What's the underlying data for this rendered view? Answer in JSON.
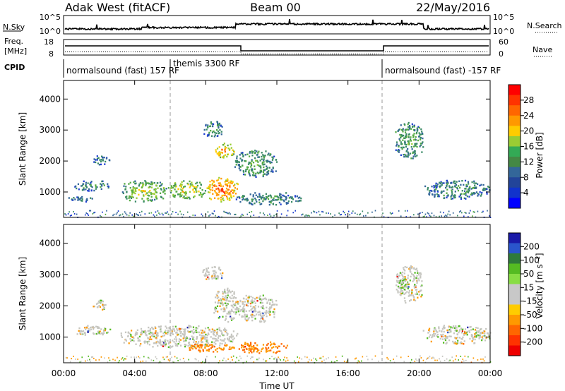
{
  "header": {
    "radar": "Adak West (fitACF)",
    "beam": "Beam 00",
    "date": "22/May/2016"
  },
  "sky_panel": {
    "left_label": "N.Sky",
    "right_label": "N.Search",
    "tick_top": "10^5",
    "tick_bottom": "10^0"
  },
  "freq_panel": {
    "label_line1": "Freq.",
    "label_line2": "[MHz]",
    "left_ticks": [
      "18",
      "8"
    ],
    "right_ticks": [
      "60",
      "0"
    ],
    "right_label": "Nave"
  },
  "cpid": {
    "label": "CPID",
    "segments": [
      {
        "text": "normalsound (fast) 157 RF",
        "start_h": 0
      },
      {
        "text": "themis 3300 RF",
        "start_h": 6
      },
      {
        "text": "normalsound (fast) -157 RF",
        "start_h": 18
      }
    ]
  },
  "power_colorbar": {
    "title": "Power [dB]",
    "ticks": [
      "28",
      "24",
      "20",
      "16",
      "12",
      "8",
      "4"
    ],
    "colors": [
      "#ff0000",
      "#ff3300",
      "#ff6600",
      "#ff9900",
      "#ffcc00",
      "#99cc33",
      "#33aa55",
      "#448844",
      "#336699",
      "#224499",
      "#1133cc",
      "#0000ff"
    ]
  },
  "velocity_colorbar": {
    "title": "Velocity [m s⁻¹]",
    "ticks": [
      "200",
      "100",
      "50",
      "15",
      "-15",
      "-50",
      "-100",
      "-200"
    ],
    "colors": [
      "#1a1aa8",
      "#2a55cc",
      "#2e7a3a",
      "#55bb22",
      "#88dd44",
      "#c8c8c8",
      "#c8c8c8",
      "#ffcc00",
      "#ff9900",
      "#ff6600",
      "#ff3300",
      "#ee0000"
    ]
  },
  "x_axis": {
    "label": "Time UT",
    "ticks": [
      "00:00",
      "04:00",
      "08:00",
      "12:00",
      "16:00",
      "20:00",
      "00:00"
    ]
  },
  "chart_data": [
    {
      "type": "heatmap",
      "name": "power",
      "ylabel": "Slant Range [km]",
      "xlabel": "Time UT",
      "xlim": [
        0,
        24
      ],
      "ylim": [
        180,
        4600
      ],
      "y_ticks": [
        1000,
        2000,
        3000,
        4000
      ],
      "colorbar_label": "Power [dB]",
      "colorbar_range": [
        0,
        32
      ],
      "echo_regions": [
        {
          "t0": 0.6,
          "t1": 2.6,
          "r0": 1050,
          "r1": 1400,
          "level": 10
        },
        {
          "t0": 0.1,
          "t1": 1.6,
          "r0": 680,
          "r1": 880,
          "level": 8
        },
        {
          "t0": 1.6,
          "t1": 2.6,
          "r0": 1900,
          "r1": 2200,
          "level": 8
        },
        {
          "t0": 3.2,
          "t1": 5.8,
          "r0": 700,
          "r1": 1400,
          "level": 16
        },
        {
          "t0": 5.8,
          "t1": 8.0,
          "r0": 800,
          "r1": 1400,
          "level": 18
        },
        {
          "t0": 8.0,
          "t1": 9.8,
          "r0": 700,
          "r1": 1500,
          "level": 26
        },
        {
          "t0": 8.4,
          "t1": 9.6,
          "r0": 2100,
          "r1": 2600,
          "level": 22
        },
        {
          "t0": 9.6,
          "t1": 13.5,
          "r0": 600,
          "r1": 1000,
          "level": 10
        },
        {
          "t0": 9.6,
          "t1": 12.0,
          "r0": 1500,
          "r1": 2400,
          "level": 12
        },
        {
          "t0": 7.8,
          "t1": 9.0,
          "r0": 2800,
          "r1": 3300,
          "level": 10
        },
        {
          "t0": 18.6,
          "t1": 20.2,
          "r0": 2100,
          "r1": 3300,
          "level": 12
        },
        {
          "t0": 20.2,
          "t1": 24.0,
          "r0": 800,
          "r1": 1400,
          "level": 10
        }
      ]
    },
    {
      "type": "heatmap",
      "name": "velocity",
      "ylabel": "Slant Range [km]",
      "xlabel": "Time UT",
      "xlim": [
        0,
        24
      ],
      "ylim": [
        180,
        4600
      ],
      "y_ticks": [
        1000,
        2000,
        3000,
        4000
      ],
      "colorbar_label": "Velocity [m s⁻¹]",
      "colorbar_range": [
        -250,
        250
      ],
      "echo_regions": [
        {
          "t0": 0.6,
          "t1": 2.6,
          "r0": 1050,
          "r1": 1400,
          "level": 0
        },
        {
          "t0": 1.6,
          "t1": 2.6,
          "r0": 1900,
          "r1": 2200,
          "level": 0
        },
        {
          "t0": 3.2,
          "t1": 9.8,
          "r0": 700,
          "r1": 1400,
          "level": 0
        },
        {
          "t0": 6.8,
          "t1": 9.6,
          "r0": 550,
          "r1": 800,
          "level": -60
        },
        {
          "t0": 8.4,
          "t1": 9.8,
          "r0": 1500,
          "r1": 2600,
          "level": 0
        },
        {
          "t0": 9.8,
          "t1": 12.6,
          "r0": 500,
          "r1": 900,
          "level": -60
        },
        {
          "t0": 9.6,
          "t1": 12.0,
          "r0": 1500,
          "r1": 2400,
          "level": 0
        },
        {
          "t0": 7.8,
          "t1": 9.0,
          "r0": 2800,
          "r1": 3300,
          "level": 0
        },
        {
          "t0": 18.6,
          "t1": 20.2,
          "r0": 2100,
          "r1": 3300,
          "level": 0
        },
        {
          "t0": 18.8,
          "t1": 19.4,
          "r0": 2500,
          "r1": 2900,
          "level": 30
        },
        {
          "t0": 20.2,
          "t1": 24.0,
          "r0": 800,
          "r1": 1400,
          "level": 0
        }
      ]
    }
  ]
}
